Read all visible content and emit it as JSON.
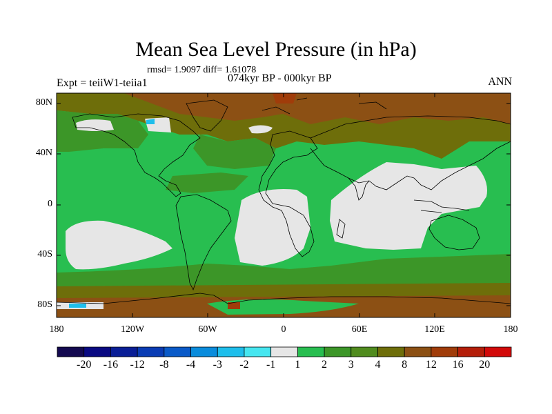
{
  "header": {
    "title": "Mean Sea Level Pressure (in hPa)",
    "stats": "rmsd= 1.9097  diff= 1.61078",
    "experiment": "Expt = teiiW1-teiia1",
    "period": "074kyr BP - 000kyr BP",
    "season": "ANN"
  },
  "axes": {
    "lat_labels": [
      "80N",
      "40N",
      "0",
      "40S",
      "80S"
    ],
    "lon_labels": [
      "180",
      "120W",
      "60W",
      "0",
      "60E",
      "120E",
      "180"
    ]
  },
  "colorbar": {
    "labels": [
      "-20",
      "-16",
      "-12",
      "-8",
      "-4",
      "-3",
      "-2",
      "-1",
      "1",
      "2",
      "3",
      "4",
      "8",
      "12",
      "16",
      "20"
    ],
    "colors": [
      "#140a50",
      "#0a0a82",
      "#0a1e96",
      "#0a3cb4",
      "#0a5ac8",
      "#0a8cdc",
      "#1ebeeb",
      "#46e6f0",
      "#e6e6e6",
      "#28be50",
      "#3c9628",
      "#508c1e",
      "#6e6e0a",
      "#8c5014",
      "#a03c0a",
      "#b41e0a",
      "#d20a0a"
    ]
  },
  "map_colors": {
    "ocean_base": "#28be50",
    "low_diff": "#e6e6e6",
    "mid_green": "#3c9628",
    "olive": "#508c1e",
    "brown": "#6e6e0a",
    "dark_brown": "#8c5014",
    "deep_red": "#a03c0a",
    "blue": "#0a8cdc",
    "coast": "#000000"
  }
}
